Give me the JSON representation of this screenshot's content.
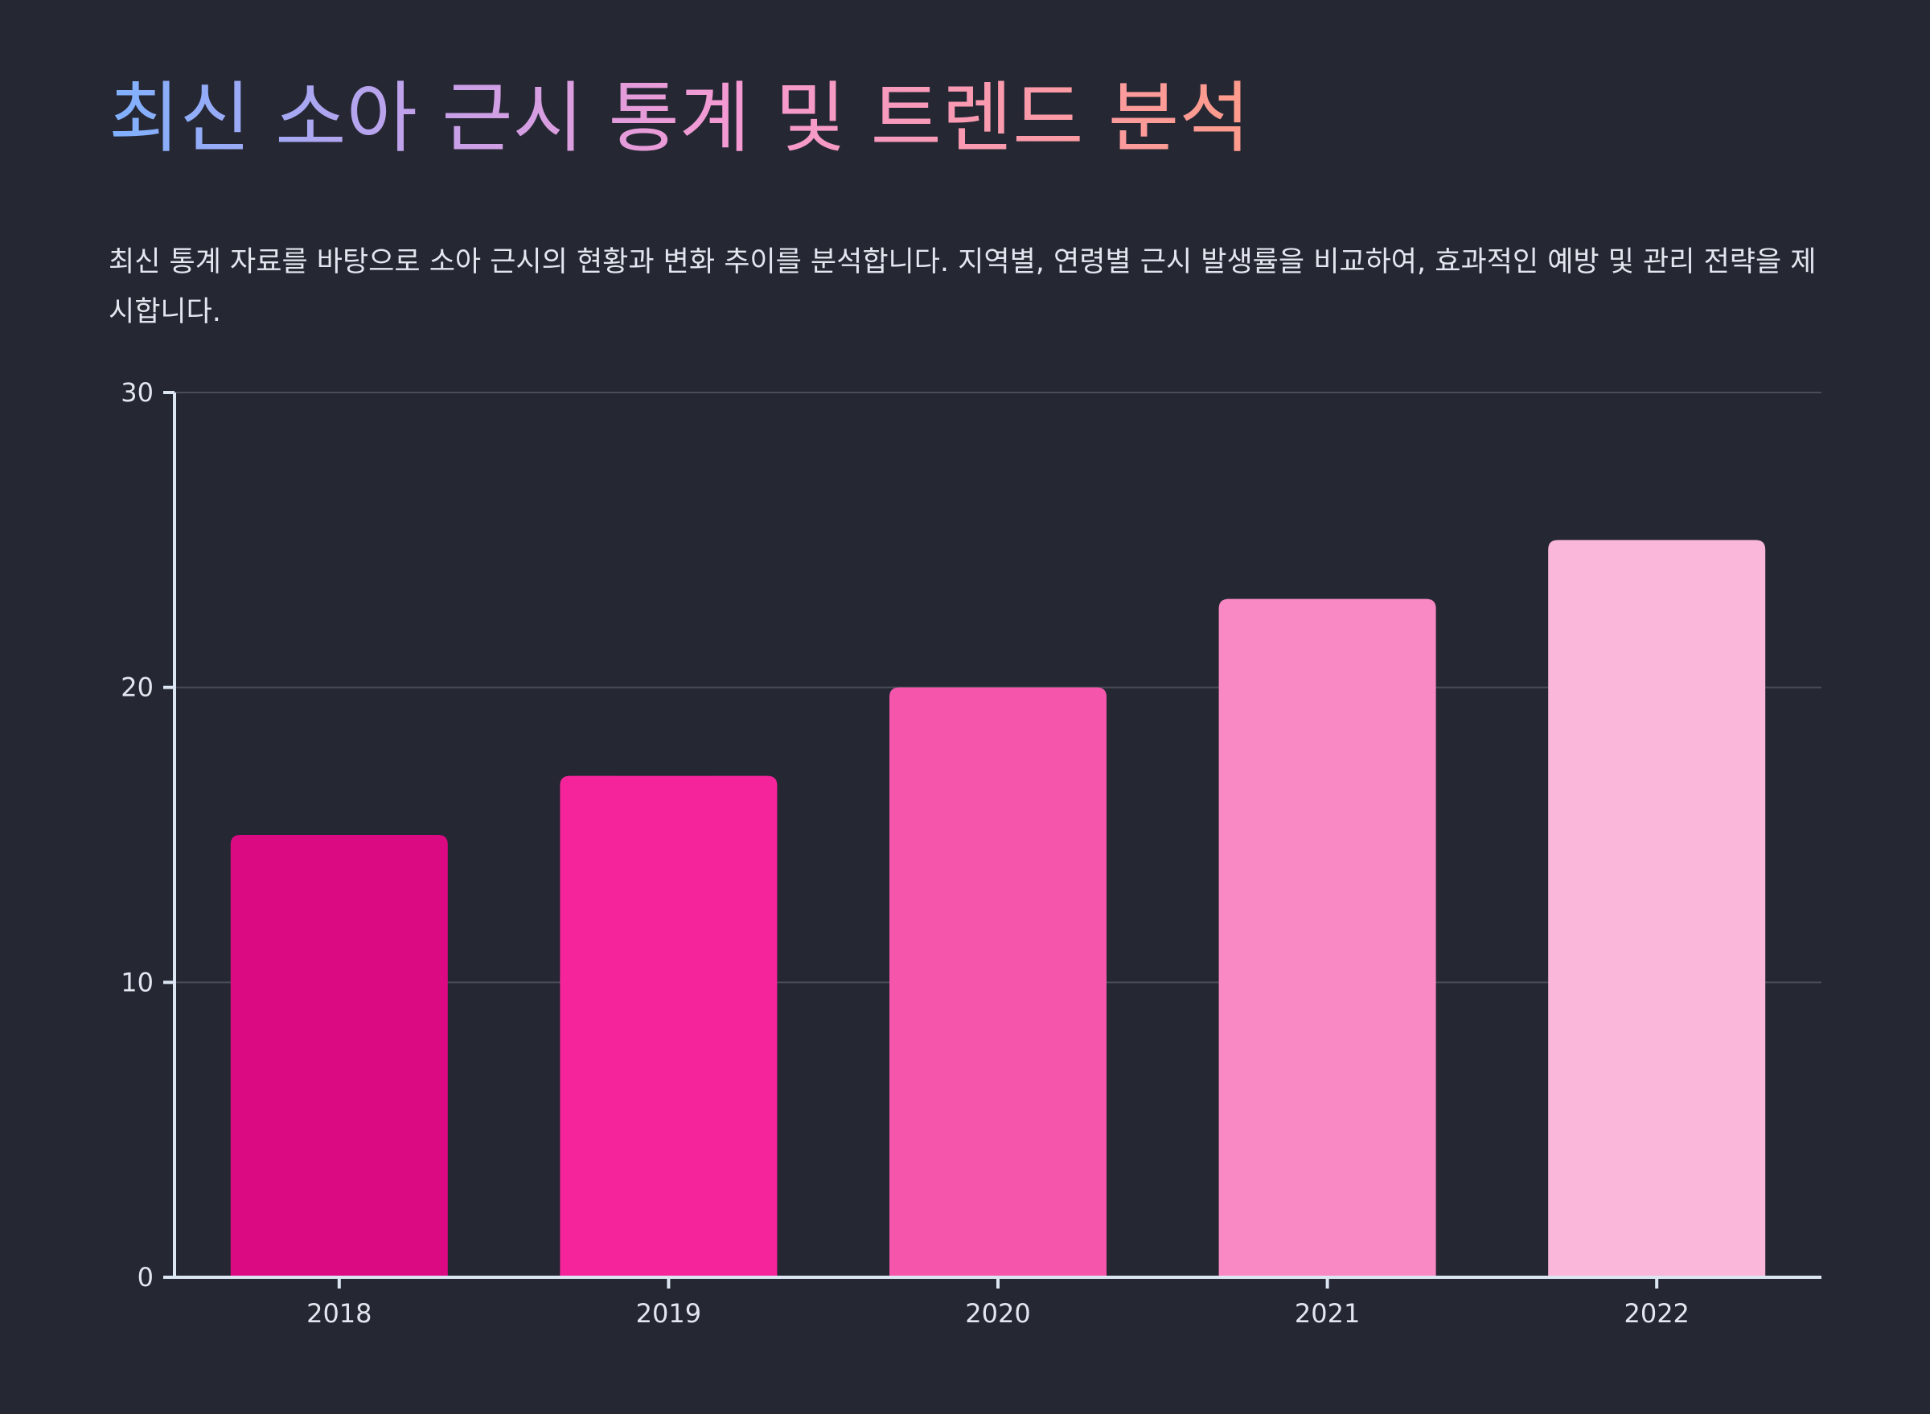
{
  "title": "최신 소아 근시 통계 및 트렌드 분석",
  "subtitle": "최신 통계 자료를 바탕으로 소아 근시의 현황과 변화 추이를 분석합니다. 지역별, 연령별 근시 발생률을 비교하여, 효과적인 예방 및 관리 전략을 제시합니다.",
  "chart_data": {
    "type": "bar",
    "categories": [
      "2018",
      "2019",
      "2020",
      "2021",
      "2022"
    ],
    "values": [
      15,
      17,
      20,
      23,
      25
    ],
    "ylim": [
      0,
      30
    ],
    "yticks": [
      0,
      10,
      20,
      30
    ],
    "xlabel": "",
    "ylabel": "",
    "grid": true,
    "legend": "none",
    "colors": [
      "#db0a82",
      "#f5249a",
      "#f556ac",
      "#f989c4",
      "#fbb7d9"
    ]
  },
  "style": {
    "background": "#252733",
    "axis_color": "#dbe6f2",
    "grid_color": "#4a4d59",
    "text_color": "#e4e6ef"
  }
}
